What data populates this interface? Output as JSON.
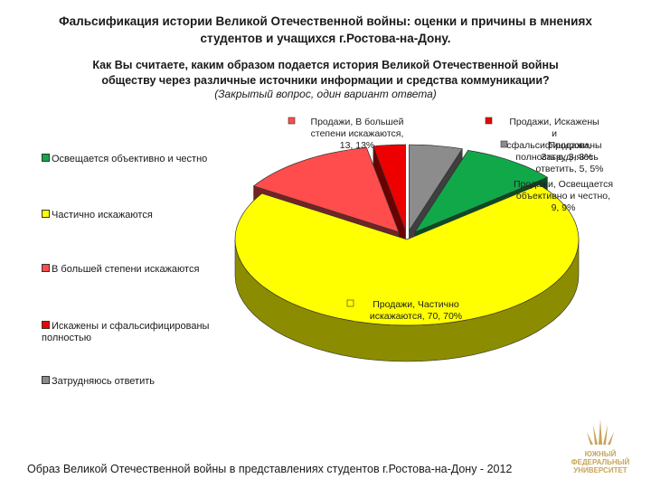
{
  "header": {
    "title": "Фальсификация  истории Великой Отечественной войны: оценки и причины в мнениях\nстудентов и учащихся г.Ростова-на-Дону.",
    "question": "Как Вы считаете,  каким образом подается история Великой Отечественной войны\nобществу через различные источники информации и средства коммуникации?",
    "note": "(Закрытый вопрос, один вариант ответа)"
  },
  "footer": {
    "text": "Образ Великой Отечественной войны в представлениях студентов г.Ростова-на-Дону - 2012"
  },
  "logo": {
    "line1": "ЮЖНЫЙ",
    "line2": "ФЕДЕРАЛЬНЫЙ",
    "line3": "УНИВЕРСИТЕТ"
  },
  "chart_data": {
    "type": "pie",
    "three_d": true,
    "series_name": "Продажи",
    "legend_position": "left",
    "slices": [
      {
        "label": "Освещается объективно и честно",
        "value": 9,
        "percent": "9%",
        "color": "#11a84a",
        "data_label": [
          "Продажи, Освещается",
          "объективно и честно,",
          "9, 9%"
        ]
      },
      {
        "label": "Частично искажаются",
        "value": 70,
        "percent": "70%",
        "color": "#ffff00",
        "data_label": [
          "Продажи, Частично",
          "искажаются, 70, 70%"
        ]
      },
      {
        "label": "В большей степени искажаются",
        "value": 13,
        "percent": "13%",
        "color": "#ff4d4d",
        "data_label": [
          "Продажи, В большей",
          "степени искажаются,",
          "13, 13%"
        ]
      },
      {
        "label": "Искажены и сфальсифицированы полностью",
        "value": 3,
        "percent": "3%",
        "color": "#ee0000",
        "data_label": [
          "Продажи, Искажены",
          "и",
          "сфальсифицированы",
          "полностью, 3, 3%"
        ]
      },
      {
        "label": "Затрудняюсь ответить",
        "value": 5,
        "percent": "5%",
        "color": "#8c8c8c",
        "data_label": [
          "Продажи,",
          "Затрудняюсь",
          "ответить, 5, 5%"
        ]
      }
    ]
  }
}
